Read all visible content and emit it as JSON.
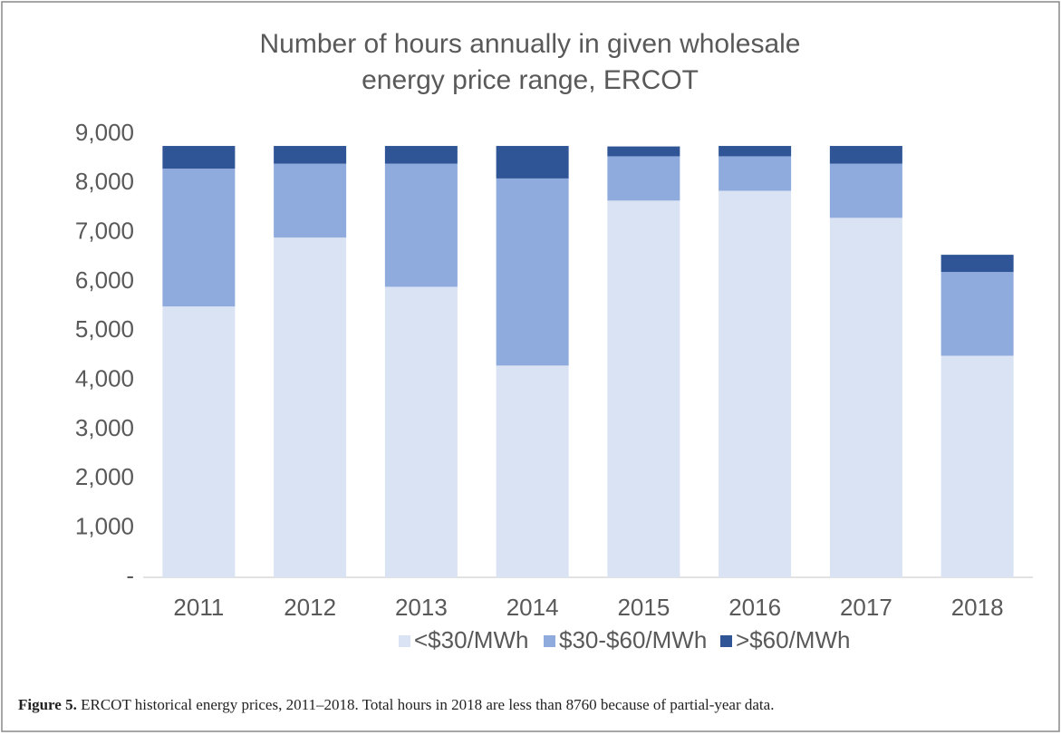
{
  "chart_data": {
    "type": "stacked_bar",
    "title": "Number of hours annually in given wholesale energy price range, ERCOT",
    "categories": [
      "2011",
      "2012",
      "2013",
      "2014",
      "2015",
      "2016",
      "2017",
      "2018"
    ],
    "series": [
      {
        "name": "<$30/MWh",
        "color": "#dae3f3",
        "values": [
          5500,
          6900,
          5900,
          4300,
          7650,
          7850,
          7300,
          4500
        ]
      },
      {
        "name": "$30-$60/MWh",
        "color": "#8faadc",
        "values": [
          2800,
          1500,
          2500,
          3800,
          900,
          700,
          1100,
          1700
        ]
      },
      {
        "name": ">$60/MWh",
        "color": "#2f5597",
        "values": [
          460,
          360,
          360,
          660,
          200,
          210,
          360,
          350
        ]
      }
    ],
    "ylim": [
      0,
      9000
    ],
    "yticks": [
      {
        "value": 0,
        "label": "-"
      },
      {
        "value": 1000,
        "label": "1,000"
      },
      {
        "value": 2000,
        "label": "2,000"
      },
      {
        "value": 3000,
        "label": "3,000"
      },
      {
        "value": 4000,
        "label": "4,000"
      },
      {
        "value": 5000,
        "label": "5,000"
      },
      {
        "value": 6000,
        "label": "6,000"
      },
      {
        "value": 7000,
        "label": "7,000"
      },
      {
        "value": 8000,
        "label": "8,000"
      },
      {
        "value": 9000,
        "label": "9,000"
      }
    ],
    "legend": "bottom",
    "caption_label": "Figure 5.",
    "caption": "ERCOT historical energy prices, 2011–2018. Total hours in 2018 are less than 8760 because of partial-year data."
  }
}
